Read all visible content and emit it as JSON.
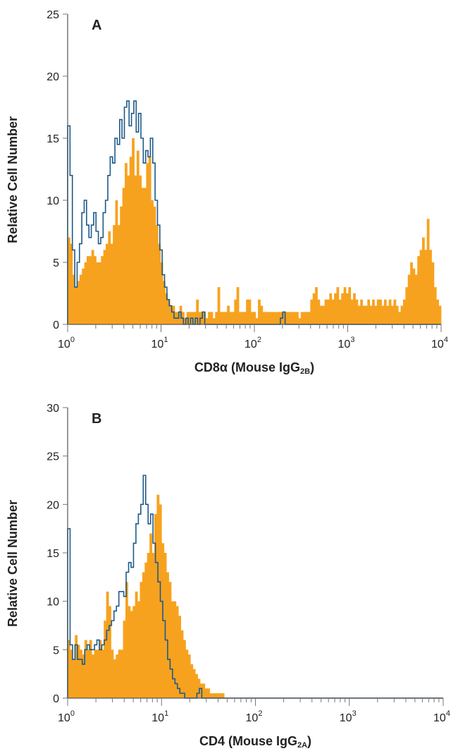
{
  "chart_data": [
    {
      "type": "histogram",
      "panel_label": "A",
      "xlabel": "CD8α (Mouse IgG2B)",
      "xlabel_parts": {
        "main": "CD8α (Mouse IgG",
        "sub": "2B",
        "end": ")"
      },
      "ylabel": "Relative Cell Number",
      "x_scale": "log",
      "xlim": [
        1,
        10000
      ],
      "ylim": [
        0,
        25
      ],
      "y_ticks": [
        0,
        5,
        10,
        15,
        20,
        25
      ],
      "x_ticks": [
        {
          "base": "10",
          "exp": "0"
        },
        {
          "base": "10",
          "exp": "1"
        },
        {
          "base": "10",
          "exp": "2"
        },
        {
          "base": "10",
          "exp": "3"
        },
        {
          "base": "10",
          "exp": "4"
        }
      ],
      "fill_color": "#f7a21e",
      "line_color": "#1d5a8a",
      "grid": false,
      "series": [
        {
          "style": "filled",
          "color": "#f7a21e",
          "values": [
            7,
            6.5,
            4,
            3,
            3.5,
            4,
            4.5,
            5,
            5.5,
            5.5,
            6,
            5.5,
            5,
            5,
            5.5,
            6,
            6.5,
            7.5,
            6.5,
            8,
            10,
            8,
            9.5,
            11,
            13,
            12,
            13.5,
            15,
            12,
            14,
            12,
            11,
            11,
            13,
            13.5,
            10,
            9.5,
            8,
            6.5,
            5,
            3.5,
            2.5,
            2,
            1.5,
            1.5,
            1,
            1,
            1.5,
            1,
            0.5,
            1,
            1,
            1,
            1,
            2,
            1,
            1,
            1,
            0.5,
            1,
            1,
            0.5,
            1,
            3,
            1,
            1,
            1,
            1.5,
            1,
            1,
            2,
            3,
            1,
            1,
            1,
            2,
            2,
            1,
            1,
            0.5,
            2,
            1.5,
            1,
            1,
            1,
            1,
            1,
            1,
            1,
            1,
            1,
            1,
            1,
            1,
            1,
            1,
            1,
            0.5,
            1,
            1,
            1,
            1,
            2,
            2.5,
            3,
            2,
            1.5,
            1.5,
            2,
            2,
            2.5,
            2,
            2.5,
            3,
            2,
            2.5,
            3,
            2.5,
            3,
            2,
            2.5,
            2,
            1.5,
            2,
            1.5,
            1.5,
            2,
            1.5,
            2,
            1.5,
            2,
            2,
            1.5,
            2,
            1.5,
            2,
            1.5,
            2,
            1.5,
            1,
            1.5,
            2,
            3,
            4,
            5,
            4.5,
            4,
            5.5,
            6,
            7,
            6,
            8.5,
            6,
            5,
            3,
            2,
            1.5
          ]
        },
        {
          "style": "outline",
          "color": "#1d5a8a",
          "values": [
            16,
            12,
            6,
            3,
            5,
            6.5,
            9,
            10,
            8,
            7,
            8,
            9,
            7.5,
            6.5,
            7,
            9,
            10,
            12,
            13.5,
            13,
            15,
            14.5,
            16.5,
            15,
            17.5,
            18,
            16,
            17,
            18,
            15.5,
            17,
            15,
            13,
            14,
            13.5,
            15,
            13,
            10,
            8,
            6,
            4,
            3,
            2,
            1.5,
            1,
            0.5,
            0.5,
            1,
            0.5,
            0,
            0.5,
            0,
            0.5,
            0,
            0.5,
            0,
            0.5,
            1,
            0,
            0,
            0,
            0,
            0,
            0,
            0,
            0,
            0,
            0,
            0,
            0,
            0,
            0,
            0,
            0,
            0,
            0,
            0,
            0,
            0,
            0,
            0,
            0,
            0,
            0,
            0,
            0,
            0,
            0,
            0,
            0,
            0.5,
            1,
            0,
            0,
            0,
            0,
            0,
            0,
            0,
            0,
            0,
            0,
            0,
            0,
            0,
            0,
            0,
            0,
            0,
            0,
            0,
            0,
            0,
            0,
            0,
            0,
            0,
            0,
            0,
            0,
            0,
            0,
            0,
            0,
            0,
            0,
            0,
            0,
            0,
            0,
            0,
            0,
            0,
            0,
            0,
            0,
            0,
            0,
            0,
            0,
            0,
            0,
            0,
            0,
            0,
            0,
            0,
            0,
            0,
            0,
            0,
            0,
            0,
            0,
            0,
            0,
            0,
            0
          ]
        }
      ]
    },
    {
      "type": "histogram",
      "panel_label": "B",
      "xlabel": "CD4 (Mouse IgG2A)",
      "xlabel_parts": {
        "main": "CD4 (Mouse IgG",
        "sub": "2A",
        "end": ")"
      },
      "ylabel": "Relative Cell Number",
      "x_scale": "log",
      "xlim": [
        1,
        10000
      ],
      "ylim": [
        0,
        30
      ],
      "y_ticks": [
        0,
        5,
        10,
        15,
        20,
        25,
        30
      ],
      "x_ticks": [
        {
          "base": "10",
          "exp": "0"
        },
        {
          "base": "10",
          "exp": "1"
        },
        {
          "base": "10",
          "exp": "2"
        },
        {
          "base": "10",
          "exp": "3"
        },
        {
          "base": "10",
          "exp": "4"
        }
      ],
      "fill_color": "#f7a21e",
      "line_color": "#1d5a8a",
      "grid": false,
      "series": [
        {
          "style": "filled",
          "color": "#f7a21e",
          "values": [
            6,
            5,
            4,
            6.5,
            5.5,
            5,
            4.5,
            6,
            5,
            6,
            4.5,
            5,
            5,
            6,
            5,
            8,
            11,
            9.5,
            5,
            4,
            4.5,
            5,
            5,
            8,
            12,
            9.5,
            9,
            9.5,
            11,
            10,
            12,
            13,
            14,
            15,
            17,
            15,
            19,
            21,
            20,
            16,
            15,
            13,
            12,
            10,
            10,
            9.5,
            8.5,
            7,
            6,
            5,
            4.5,
            3.5,
            3,
            2.5,
            2,
            1.5,
            1.5,
            1,
            1,
            0.5,
            0.5,
            0.5,
            0.5,
            0.5,
            0.5,
            0,
            0,
            0,
            0,
            0,
            0,
            0,
            0,
            0,
            0,
            0,
            0,
            0,
            0,
            0,
            0,
            0,
            0,
            0,
            0,
            0,
            0,
            0,
            0,
            0,
            0,
            0,
            0,
            0,
            0,
            0,
            0,
            0,
            0,
            0,
            0,
            0,
            0,
            0,
            0,
            0,
            0,
            0,
            0,
            0,
            0,
            0,
            0,
            0,
            0,
            0,
            0,
            0,
            0,
            0,
            0,
            0,
            0,
            0,
            0,
            0,
            0,
            0,
            0,
            0,
            0,
            0,
            0,
            0,
            0,
            0,
            0,
            0,
            0,
            0,
            0,
            0,
            0,
            0,
            0,
            0,
            0,
            0,
            0,
            0,
            0,
            0,
            0,
            0,
            0,
            0
          ]
        },
        {
          "style": "outline",
          "color": "#1d5a8a",
          "values": [
            17.5,
            5.5,
            4,
            5.5,
            4,
            4,
            3.5,
            5,
            5.5,
            5,
            5,
            5.5,
            6,
            5,
            5.5,
            6,
            7,
            7.5,
            8,
            9,
            9.5,
            11,
            11,
            10.5,
            13,
            14,
            13.5,
            16,
            18,
            19,
            20,
            23,
            20,
            18,
            19,
            16,
            14,
            12,
            10,
            8,
            6,
            4,
            3,
            2,
            1.5,
            1,
            0.5,
            0.5,
            0,
            0,
            0,
            0,
            0,
            0.5,
            1,
            0,
            0,
            0,
            0,
            0,
            0,
            0,
            0,
            0,
            0,
            0,
            0,
            0,
            0,
            0,
            0,
            0,
            0,
            0,
            0,
            0,
            0,
            0,
            0,
            0,
            0,
            0,
            0,
            0,
            0,
            0,
            0,
            0,
            0,
            0,
            0,
            0,
            0,
            0,
            0,
            0,
            0,
            0,
            0,
            0,
            0,
            0,
            0,
            0,
            0,
            0,
            0,
            0,
            0,
            0,
            0,
            0,
            0,
            0,
            0,
            0,
            0,
            0,
            0,
            0,
            0,
            0,
            0,
            0,
            0,
            0,
            0,
            0,
            0,
            0,
            0,
            0,
            0,
            0,
            0,
            0,
            0,
            0,
            0,
            0,
            0,
            0,
            0,
            0,
            0,
            0,
            0,
            0,
            0,
            0,
            0,
            0,
            0,
            0
          ]
        }
      ]
    }
  ]
}
